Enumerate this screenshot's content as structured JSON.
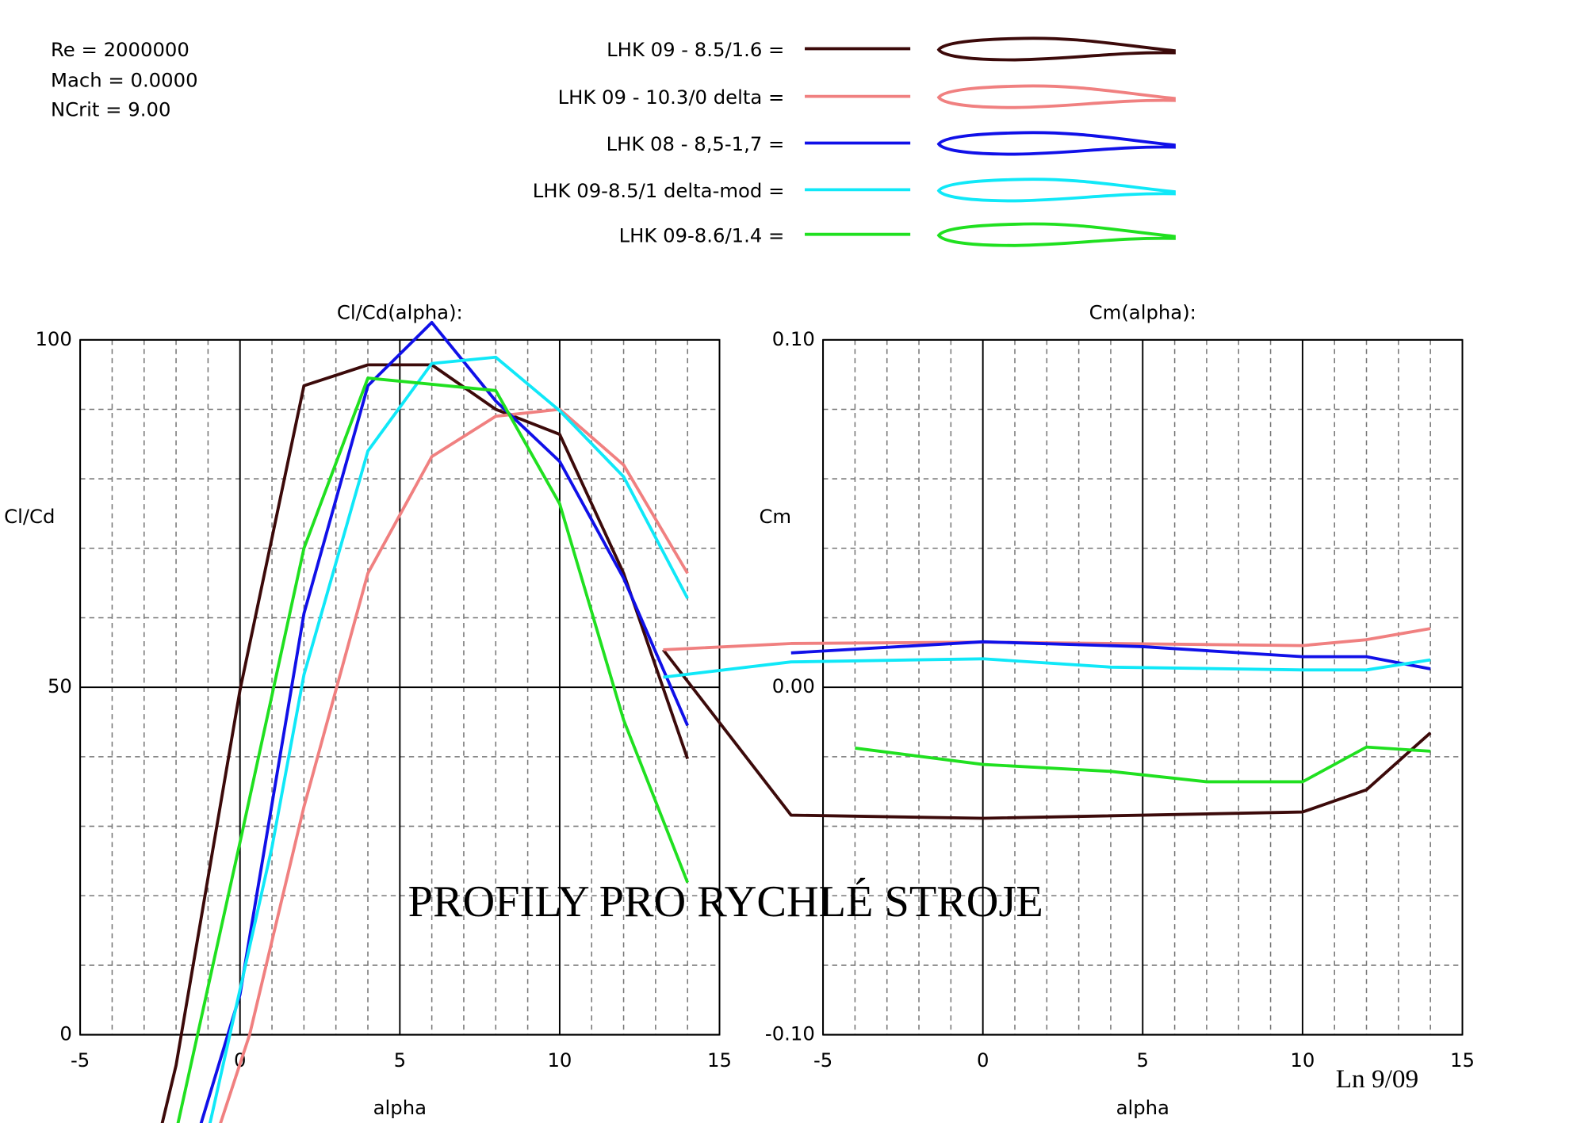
{
  "conditions": [
    "Re = 2000000",
    "Mach = 0.0000",
    "NCrit = 9.00"
  ],
  "overlay_title": "PROFILY  PRO  RYCHLÉ  STROJE",
  "note": "Ln 9/09",
  "chart_data": [
    {
      "type": "line",
      "title": "Cl/Cd(alpha):",
      "xlabel": "alpha",
      "ylabel": "Cl/Cd",
      "xlim": [
        -5,
        15
      ],
      "ylim": [
        0,
        100
      ],
      "xticks": [
        -5,
        0,
        5,
        10,
        15
      ],
      "yticks": [
        0,
        50,
        100
      ],
      "grid": true,
      "series": [
        {
          "name": "LHK 09 - 8.5/1.6 =",
          "color": "#3c0a0a",
          "x": [
            -2.5,
            -2,
            0,
            2,
            4,
            6,
            8,
            10,
            12,
            14
          ],
          "values": [
            -14,
            -4.4,
            49.6,
            93.4,
            96.4,
            96.4,
            90,
            86.4,
            66.4,
            39.7
          ]
        },
        {
          "name": "LHK  09 - 10.3/0  delta =",
          "color": "#f08080",
          "x": [
            -0.7,
            0.3,
            2,
            4,
            6,
            8,
            10,
            12,
            14
          ],
          "values": [
            -14,
            0,
            32.8,
            66.4,
            83.2,
            89,
            90,
            82,
            66.4
          ]
        },
        {
          "name": "LHK 08 - 8,5-1,7 =",
          "color": "#1010e8",
          "x": [
            -1.3,
            0,
            2,
            4,
            6,
            8,
            10,
            12,
            14
          ],
          "values": [
            -14,
            5.8,
            60.6,
            93.4,
            102.5,
            91.2,
            82.5,
            65.7,
            44.5
          ]
        },
        {
          "name": "LHK 09-8.5/1    delta-mod =",
          "color": "#10e8f8",
          "x": [
            -1,
            1,
            2,
            4,
            6,
            8,
            10,
            12,
            14
          ],
          "values": [
            -14,
            27,
            51.8,
            84,
            96.6,
            97.5,
            89.8,
            80.3,
            62.8
          ]
        },
        {
          "name": "LHK 09-8.6/1.4 =",
          "color": "#20e020",
          "x": [
            -2,
            0,
            2,
            4,
            8,
            10,
            12,
            14
          ],
          "values": [
            -14,
            27.7,
            70,
            94.5,
            92.7,
            76.4,
            45.3,
            21.9
          ]
        }
      ]
    },
    {
      "type": "line",
      "title": "Cm(alpha):",
      "xlabel": "alpha",
      "ylabel": "Cm",
      "xlim": [
        -5,
        15
      ],
      "ylim": [
        -0.1,
        0.1
      ],
      "xticks": [
        -5,
        0,
        5,
        10,
        15
      ],
      "yticks": [
        {
          "value": -0.1,
          "label": "-0.10"
        },
        {
          "value": 0,
          "label": "0.00"
        },
        {
          "value": 0.1,
          "label": "0.10"
        }
      ],
      "grid": true,
      "series": [
        {
          "color": "#3c0a0a",
          "x": [
            -10,
            -6,
            0,
            10,
            12,
            14
          ],
          "values": [
            0.0108,
            -0.0368,
            -0.0377,
            -0.0359,
            -0.0295,
            -0.0131
          ]
        },
        {
          "color": "#f08080",
          "x": [
            -10,
            -6,
            0,
            10,
            12,
            14
          ],
          "values": [
            0.0108,
            0.0126,
            0.013,
            0.012,
            0.0137,
            0.0169
          ]
        },
        {
          "color": "#1010e8",
          "x": [
            -6,
            0,
            5,
            10,
            12,
            14
          ],
          "values": [
            0.0099,
            0.0131,
            0.0117,
            0.0088,
            0.0088,
            0.0053
          ]
        },
        {
          "color": "#10e8f8",
          "x": [
            -10,
            -6,
            0,
            4,
            10,
            12,
            14
          ],
          "values": [
            0.0029,
            0.0073,
            0.0082,
            0.0058,
            0.005,
            0.005,
            0.0079
          ]
        },
        {
          "color": "#20e020",
          "x": [
            -4,
            0,
            4,
            7,
            10,
            12,
            14
          ],
          "values": [
            -0.0175,
            -0.0222,
            -0.0242,
            -0.0272,
            -0.0272,
            -0.0172,
            -0.0184
          ]
        }
      ]
    }
  ]
}
